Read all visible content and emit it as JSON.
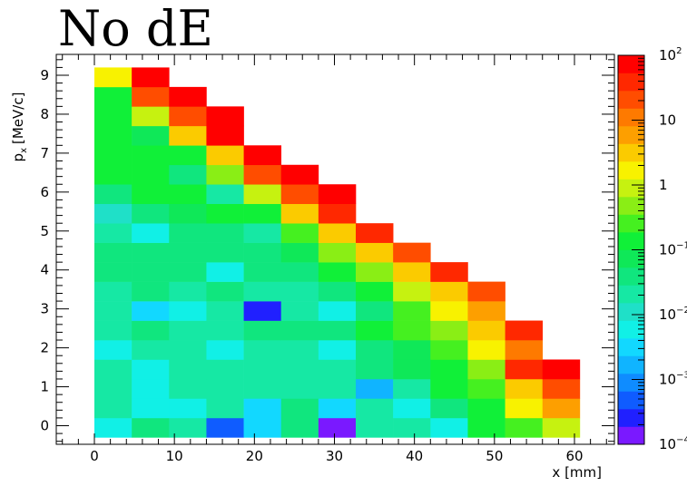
{
  "chart_data": {
    "type": "heatmap",
    "title": "No dE",
    "xlabel": "x [mm]",
    "ylabel": "p",
    "ylabel_sub": "x",
    "ylabel_unit": "[MeV/c]",
    "xlim": [
      -4.8,
      65.5
    ],
    "ylim": [
      -0.5,
      9.5
    ],
    "x_ticks": [
      0,
      10,
      20,
      30,
      40,
      50,
      60
    ],
    "y_ticks": [
      0,
      1,
      2,
      3,
      4,
      5,
      6,
      7,
      8,
      9
    ],
    "x_bin_edges": [
      0,
      4.667,
      9.333,
      14,
      18.667,
      23.333,
      28,
      32.667,
      37.333,
      42,
      46.667,
      51.333,
      56,
      60.667
    ],
    "y_bin_edges": [
      -0.3,
      0.2,
      0.7,
      1.2,
      1.7,
      2.2,
      2.7,
      3.2,
      3.7,
      4.2,
      4.7,
      5.2,
      5.7,
      6.2,
      6.7,
      7.2,
      7.7,
      8.2,
      8.7,
      9.2
    ],
    "colorbar": {
      "scale": "log",
      "zlim": [
        0.0001,
        100
      ],
      "tick_values": [
        0.0001,
        0.001,
        0.01,
        0.1,
        1,
        10,
        100
      ],
      "tick_base": [
        "10",
        "10",
        "10",
        "10",
        "1",
        "10",
        "10"
      ],
      "tick_exp": [
        "−4",
        "−3",
        "−2",
        "−1",
        "",
        "",
        "2"
      ]
    },
    "log10_values": [
      [
        -2.3,
        -1.5,
        -1.6,
        -3.2,
        -2.5,
        -1.5,
        -3.8,
        -1.6,
        -1.8,
        -2.3,
        -0.8,
        -0.6,
        0.0
      ],
      [
        -1.6,
        -2.3,
        -2.3,
        -1.6,
        -2.6,
        -1.5,
        -2.6,
        -1.8,
        -2.2,
        -1.3,
        -0.8,
        0.2,
        0.8
      ],
      [
        -1.6,
        -2.3,
        -1.6,
        -1.6,
        -1.6,
        -1.8,
        -1.8,
        -2.9,
        -1.6,
        -1.0,
        -0.6,
        0.6,
        1.2
      ],
      [
        -1.6,
        -2.3,
        -1.6,
        -1.6,
        -1.6,
        -1.8,
        -1.8,
        -1.5,
        -1.2,
        -0.8,
        -0.2,
        1.6,
        1.8
      ],
      [
        -2.3,
        -1.8,
        -1.8,
        -2.3,
        -1.6,
        -1.8,
        -2.3,
        -1.5,
        -1.2,
        -0.6,
        0.2,
        1.1,
        2.0
      ],
      [
        -1.6,
        -1.5,
        -1.8,
        -1.8,
        -1.5,
        -1.5,
        -1.5,
        -1.0,
        -0.6,
        -0.2,
        0.6,
        1.7,
        2.0
      ],
      [
        -1.6,
        -2.6,
        -2.2,
        -1.8,
        -3.5,
        -1.6,
        -2.3,
        -1.3,
        -0.6,
        0.2,
        0.9,
        1.7,
        2.0
      ],
      [
        -1.6,
        -1.4,
        -1.8,
        -1.4,
        -1.8,
        -1.8,
        -1.3,
        -0.8,
        0.0,
        0.6,
        1.4,
        2.0,
        2.0
      ],
      [
        -1.4,
        -1.4,
        -1.4,
        -2.3,
        -1.4,
        -1.5,
        -0.8,
        -0.2,
        0.6,
        1.6,
        2.0,
        2.0,
        2.0
      ],
      [
        -1.4,
        -1.5,
        -1.4,
        -1.4,
        -1.3,
        -1.2,
        -0.3,
        0.5,
        1.4,
        1.6,
        2.0,
        2.0,
        2.0
      ],
      [
        -1.6,
        -2.3,
        -1.3,
        -1.3,
        -1.8,
        -0.6,
        0.6,
        1.6,
        2.0,
        2.0,
        2.0,
        2.0,
        2.0
      ],
      [
        -2.0,
        -1.4,
        -1.2,
        -0.9,
        -1.0,
        0.4,
        1.6,
        2.0,
        2.0,
        2.0,
        2.0,
        2.0,
        2.0
      ],
      [
        -1.4,
        -0.9,
        -0.9,
        -1.6,
        0.0,
        1.2,
        2.0,
        2.0,
        2.0,
        2.0,
        2.0,
        2.0,
        2.0
      ],
      [
        -0.9,
        -0.9,
        -1.3,
        -0.2,
        1.2,
        2.0,
        2.0,
        2.0,
        2.0,
        2.0,
        2.0,
        2.0,
        2.0
      ],
      [
        -0.9,
        -1.0,
        -0.9,
        0.6,
        2.0,
        2.0,
        2.0,
        2.0,
        2.0,
        2.0,
        2.0,
        2.0,
        2.0
      ],
      [
        -0.9,
        -1.2,
        0.4,
        2.0,
        2.0,
        2.0,
        2.0,
        2.0,
        2.0,
        2.0,
        2.0,
        2.0,
        2.0
      ],
      [
        -0.9,
        -0.1,
        1.2,
        2.0,
        2.0,
        2.0,
        2.0,
        2.0,
        2.0,
        2.0,
        2.0,
        2.0,
        2.0
      ],
      [
        -0.9,
        1.2,
        1.9,
        2.0,
        2.0,
        2.0,
        2.0,
        2.0,
        2.0,
        2.0,
        2.0,
        2.0,
        2.0
      ],
      [
        0.3,
        1.9,
        2.0,
        2.0,
        2.0,
        2.0,
        2.0,
        2.0,
        2.0,
        2.0,
        2.0,
        2.0,
        2.0
      ]
    ],
    "filled_columns_per_row": [
      13,
      13,
      13,
      13,
      12,
      12,
      11,
      11,
      10,
      9,
      8,
      7,
      7,
      6,
      5,
      4,
      4,
      3,
      2
    ],
    "palette": [
      "#7a19ff",
      "#2020ff",
      "#0f5cff",
      "#0f8cff",
      "#10b4ff",
      "#12d8ff",
      "#11f0e6",
      "#1fe0c8",
      "#16e8a4",
      "#10e67e",
      "#0fe858",
      "#10f038",
      "#45f020",
      "#8aee15",
      "#c6f210",
      "#f8f200",
      "#fbcb00",
      "#fd9f00",
      "#fe7a00",
      "#ff4d00",
      "#ff2800",
      "#ff0000"
    ],
    "grid": false,
    "legend": "none"
  }
}
